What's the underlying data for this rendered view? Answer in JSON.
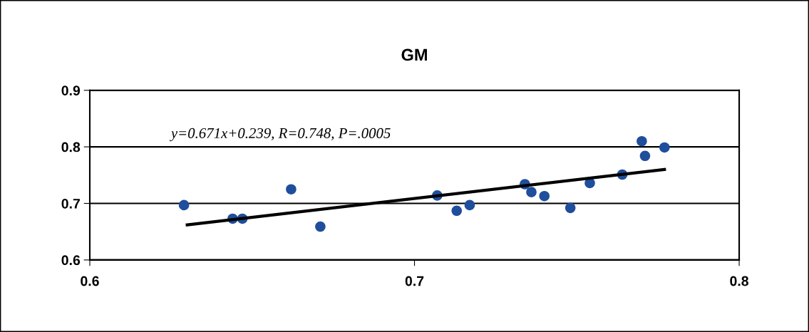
{
  "chart_data": {
    "type": "scatter",
    "title": "GM",
    "x": [
      0.629,
      0.644,
      0.647,
      0.662,
      0.671,
      0.707,
      0.713,
      0.717,
      0.734,
      0.736,
      0.74,
      0.748,
      0.754,
      0.764,
      0.77,
      0.771,
      0.777
    ],
    "series": [
      {
        "color": "#1f4e9c",
        "marker": "circle",
        "values": [
          0.697,
          0.673,
          0.673,
          0.725,
          0.659,
          0.714,
          0.687,
          0.697,
          0.734,
          0.72,
          0.713,
          0.692,
          0.736,
          0.751,
          0.81,
          0.784,
          0.799
        ]
      },
      {
        "type": "line",
        "color": "#000000",
        "x": [
          0.63,
          0.777
        ],
        "values": [
          0.662,
          0.76
        ],
        "line_style": "solid",
        "marker": "none"
      }
    ],
    "annotations": [
      "y=0.671x+0.239, R=0.748, P=.0005"
    ],
    "xlim": [
      0.6,
      0.8
    ],
    "xticks": [
      0.6,
      0.7,
      0.8
    ],
    "ylim": [
      0.6,
      0.9
    ],
    "yticks": [
      0.6,
      0.7,
      0.8,
      0.9
    ],
    "grid": "y",
    "legend": false
  }
}
